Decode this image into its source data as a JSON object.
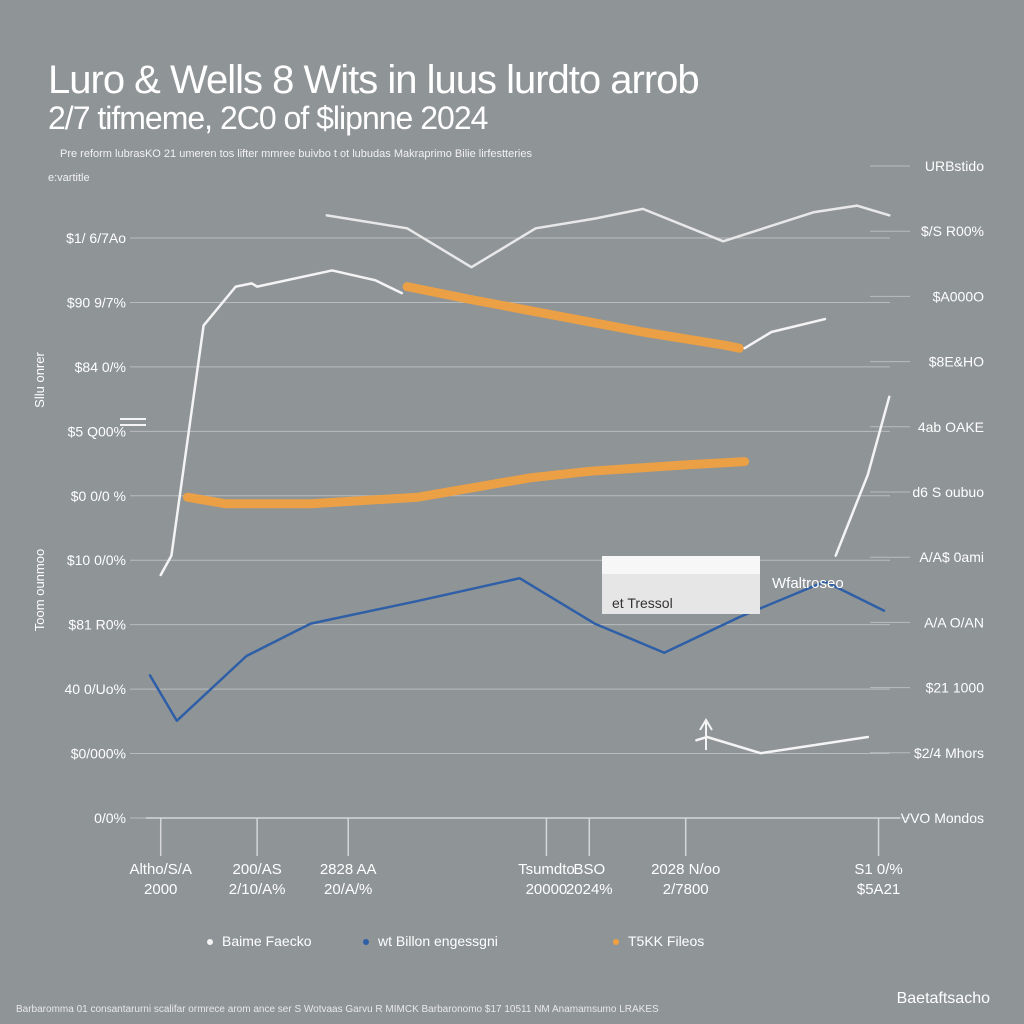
{
  "header": {
    "title": "Luro & Wells 8 Wits in luus lurdto arrob",
    "subtitle": "2/7 tifmeme, 2C0 of $lipnne 2024",
    "caption": "Pre reform lubrasKO 21 umeren tos lifter mmree buivbo t ot lubudas Makraprimo Bilie lirfestteries",
    "caption_sub": "e:vartitle"
  },
  "footer": {
    "note": "Barbaromma 01 consantarurni scalifar ormrece arom ance ser S Wotvaas Garvu R MIMCK Barbaronomo $17 10511 NM Anamamsumo LRAKES",
    "brand": "Baetaftsacho"
  },
  "colors": {
    "background": "#8f9497",
    "blue": "#2f5fa6",
    "orange": "#f0a040",
    "white": "#f4f4f4",
    "grid": "#b9bcbe"
  },
  "chart_data": {
    "type": "line",
    "title": "Luro & Wells 8 Wits in luus lurdto arrob",
    "y_left_ticks": [
      "$1/ 6/7Ao",
      "$90 9/7%",
      "$84 0/%",
      "$5 Q00%",
      "$0 0/0 %",
      "$10 0/0%",
      "$81 R0%",
      "40 0/Uo%",
      "$0/000%",
      "0/0%"
    ],
    "y_right_ticks": [
      "URBstido",
      "$/S R00%",
      "$A000O",
      "$8E&HO",
      "4ab OAKE",
      "d6 S oubuo",
      "A/A$ 0ami",
      "A/A O/AN",
      "$21 1000",
      "$2/4 Mhors",
      "VVO Mondos"
    ],
    "y_left_axis_label": "Toom ounmoo",
    "y_left_axis_label_2": "Sllu onrer",
    "x_categories": [
      [
        "Altho/S/A",
        "2000"
      ],
      [
        "200/AS",
        "2/10/A%"
      ],
      [
        "2828 AA",
        "20/A/%"
      ],
      [
        "Tsumdto",
        "20000"
      ],
      [
        "BSO",
        "2024%"
      ],
      [
        "2028 N/oo",
        "2/7800"
      ],
      [
        "S1 0/%",
        "$5A21"
      ]
    ],
    "series": [
      {
        "name": "Baime Faecko",
        "color": "#f4f4f4",
        "x": [
          0.1,
          0.2,
          0.5,
          0.8,
          0.95,
          1.0,
          1.7,
          2.1,
          2.35
        ],
        "y": [
          3.75,
          4.05,
          7.6,
          8.2,
          8.25,
          8.2,
          8.45,
          8.3,
          8.1
        ]
      },
      {
        "name": "wt Billon engessgni",
        "color": "#2f5fa6",
        "x": [
          0.0,
          0.25,
          0.9,
          1.5,
          2.5,
          3.45,
          4.15,
          4.8,
          5.5,
          6.3,
          6.85
        ],
        "y": [
          2.2,
          1.5,
          2.5,
          3.0,
          3.35,
          3.7,
          3.0,
          2.55,
          3.1,
          3.65,
          3.2
        ]
      },
      {
        "name": "T5KK Fileos",
        "color": "#f0a040",
        "x": [
          0.35,
          0.7,
          1.5,
          2.5,
          3.55,
          4.1,
          5.0,
          5.55
        ],
        "y": [
          4.95,
          4.85,
          4.85,
          4.95,
          5.25,
          5.35,
          5.45,
          5.5
        ]
      },
      {
        "name": "orange-upper",
        "color": "#f0a040",
        "x": [
          2.4,
          3.0,
          3.8,
          4.6,
          5.35,
          5.5
        ],
        "y": [
          8.2,
          8.0,
          7.75,
          7.5,
          7.3,
          7.25
        ]
      },
      {
        "name": "grey-upper",
        "color": "#e8e8e8",
        "x": [
          1.65,
          2.4,
          3.0,
          3.6,
          4.15,
          4.6,
          5.35,
          6.2,
          6.6,
          6.9
        ],
        "y": [
          9.3,
          9.1,
          8.5,
          9.1,
          9.25,
          9.4,
          8.9,
          9.35,
          9.45,
          9.3
        ]
      },
      {
        "name": "white-right",
        "color": "#f4f4f4",
        "x": [
          5.55,
          5.8,
          6.3
        ],
        "y": [
          7.25,
          7.5,
          7.7
        ]
      },
      {
        "name": "white-far-right",
        "color": "#f4f4f4",
        "x": [
          6.4,
          6.7,
          6.9
        ],
        "y": [
          4.05,
          5.3,
          6.5
        ]
      },
      {
        "name": "white-lower",
        "color": "#f4f4f4",
        "x": [
          5.1,
          5.2,
          5.7,
          6.3,
          6.7
        ],
        "y": [
          1.2,
          1.25,
          1.0,
          1.15,
          1.25
        ]
      }
    ],
    "callout": {
      "label": "et Tressol",
      "side_label": "Wfaltroseo"
    },
    "legend": {
      "placement": "bottom",
      "items": [
        {
          "label": "Baime Faecko",
          "color": "#f4f4f4"
        },
        {
          "label": "wt Billon engessgni",
          "color": "#2f5fa6"
        },
        {
          "label": "T5KK Fileos",
          "color": "#f0a040"
        }
      ]
    },
    "ylim": [
      0,
      10
    ],
    "xlim": [
      0,
      7
    ],
    "grid": true
  }
}
